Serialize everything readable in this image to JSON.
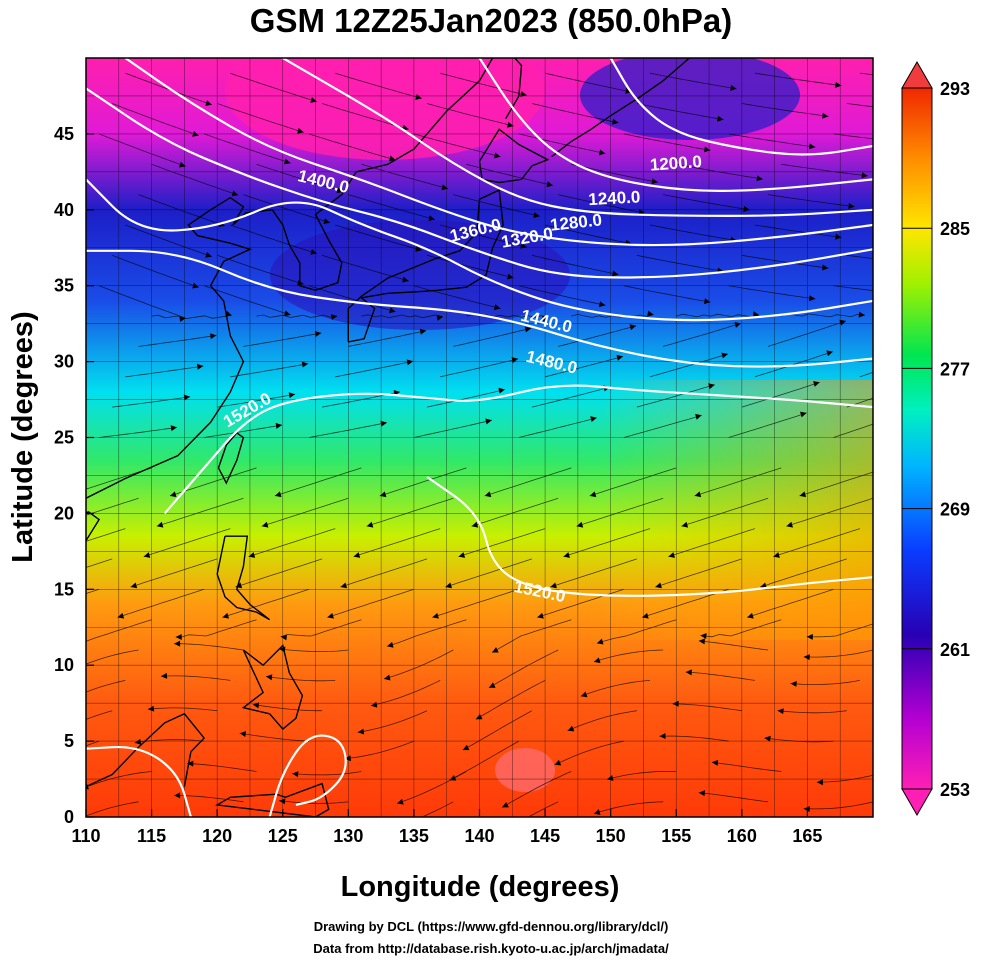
{
  "title": "GSM 12Z25Jan2023 (850.0hPa)",
  "credits": [
    "Drawing by DCL (https://www.gfd-dennou.org/library/dcl/)",
    "Data from http://database.rish.kyoto-u.ac.jp/arch/jmadata/"
  ],
  "chart_data": {
    "type": "heatmap",
    "xlabel": "Longitude (degrees)",
    "ylabel": "Latitude  (degrees)",
    "xlim": [
      110,
      170
    ],
    "ylim": [
      0,
      50
    ],
    "x_ticks": [
      "110",
      "115",
      "120",
      "125",
      "130",
      "135",
      "140",
      "145",
      "150",
      "155",
      "160",
      "165"
    ],
    "y_ticks": [
      "0",
      "5",
      "10",
      "15",
      "20",
      "25",
      "30",
      "35",
      "40",
      "45"
    ],
    "grid": true,
    "colorbar": {
      "min": 253,
      "max": 293,
      "tick_labels": [
        "293",
        "285",
        "277",
        "269",
        "261",
        "253"
      ],
      "palette": [
        "#ff1493",
        "#c800c8",
        "#2b00b4",
        "#0040ff",
        "#00c8ff",
        "#00ff80",
        "#80ff00",
        "#ffe600",
        "#ff9600",
        "#ff3c00",
        "#f02800"
      ]
    },
    "color_field": "temperature (K)",
    "vector_field": "wind streamlines",
    "coastline_color": "#000000",
    "contour_color": "#ffffff",
    "contour_labels": [
      {
        "text": "1200.0",
        "lon": 155.0,
        "lat": 42.7
      },
      {
        "text": "1240.0",
        "lon": 150.3,
        "lat": 40.4
      },
      {
        "text": "1280.0",
        "lon": 147.4,
        "lat": 38.8
      },
      {
        "text": "1320.0",
        "lon": 143.7,
        "lat": 37.8
      },
      {
        "text": "1360.0",
        "lon": 139.8,
        "lat": 38.3
      },
      {
        "text": "1400.0",
        "lon": 128.0,
        "lat": 41.5
      },
      {
        "text": "1440.0",
        "lon": 145.0,
        "lat": 32.3
      },
      {
        "text": "1480.0",
        "lon": 145.4,
        "lat": 29.6
      },
      {
        "text": "1520.0",
        "lon": 122.5,
        "lat": 26.5
      },
      {
        "text": "1520.0",
        "lon": 144.5,
        "lat": 14.5
      }
    ]
  }
}
